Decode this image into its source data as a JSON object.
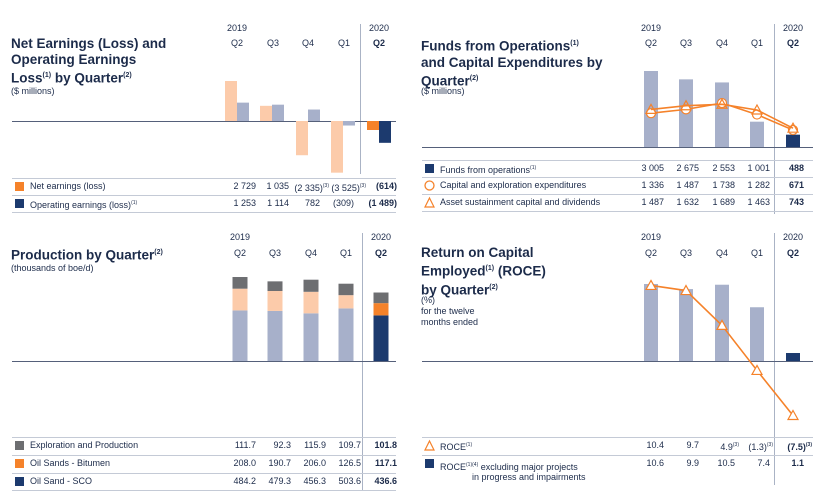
{
  "colors": {
    "navy": "#1c3a6e",
    "orange": "#f5822a",
    "light_orange": "#fccbaa",
    "light_blue": "#a7b0ca",
    "grey": "#6d6e71"
  },
  "chart_data": [
    {
      "type": "bar",
      "id": "net_earnings",
      "title": "Net Earnings (Loss) and Operating Earnings Loss by Quarter",
      "title_line1": "Net Earnings (Loss) and",
      "title_line2": "Operating Earnings",
      "title_line3_pre": "Loss",
      "title_line3_sup1": "(1)",
      "title_line3_mid": " by Quarter",
      "title_line3_sup2": "(2)",
      "subtitle": "($ millions)",
      "year_labels": [
        "2019",
        "2020"
      ],
      "categories": [
        "Q2",
        "Q3",
        "Q4",
        "Q1",
        "Q2"
      ],
      "series": [
        {
          "name": "Net earnings (loss)",
          "values": [
            2729,
            1035,
            -2335,
            -3525,
            -614
          ],
          "display": [
            "2 729",
            "1 035",
            "(2 335)",
            "(3 525)",
            "(614)"
          ],
          "display_sup": [
            "",
            "",
            "(3)",
            "(3)",
            ""
          ],
          "highlight_color": "#f5822a",
          "faded_color": "#fccbaa",
          "legend_sup": ""
        },
        {
          "name": "Operating earnings (loss)",
          "values": [
            1253,
            1114,
            782,
            -309,
            -1489
          ],
          "display": [
            "1 253",
            "1 114",
            "782",
            "(309)",
            "(1 489)"
          ],
          "display_sup": [
            "",
            "",
            "",
            "",
            ""
          ],
          "highlight_color": "#1c3a6e",
          "faded_color": "#a7b0ca",
          "legend_sup": "(1)"
        }
      ]
    },
    {
      "type": "bar+line",
      "id": "funds_from_operations",
      "title": "Funds from Operations and Capital Expenditures by Quarter",
      "title_line1_pre": "Funds from Operations",
      "title_line1_sup": "(1)",
      "title_line2": "and Capital Expenditures by",
      "title_line3_pre": "Quarter",
      "title_line3_sup": "(2)",
      "subtitle": "($ millions)",
      "year_labels": [
        "2019",
        "2020"
      ],
      "categories": [
        "Q2",
        "Q3",
        "Q4",
        "Q1",
        "Q2"
      ],
      "series": [
        {
          "name": "Funds from operations",
          "legend_sup": "(1)",
          "values": [
            3005,
            2675,
            2553,
            1001,
            488
          ],
          "display": [
            "3 005",
            "2 675",
            "2 553",
            "1 001",
            "488"
          ]
        },
        {
          "name": "Capital and exploration expenditures",
          "legend_sup": "",
          "values": [
            1336,
            1487,
            1738,
            1282,
            671
          ],
          "display": [
            "1 336",
            "1 487",
            "1 738",
            "1 282",
            "671"
          ]
        },
        {
          "name": "Asset sustainment capital and dividends",
          "legend_sup": "",
          "values": [
            1487,
            1632,
            1689,
            1463,
            743
          ],
          "display": [
            "1 487",
            "1 632",
            "1 689",
            "1 463",
            "743"
          ]
        }
      ]
    },
    {
      "type": "stacked-bar",
      "id": "production",
      "title": "Production by Quarter",
      "title_line1_pre": "Production by Quarter",
      "title_line1_sup": "(2)",
      "subtitle": "(thousands of boe/d)",
      "year_labels": [
        "2019",
        "2020"
      ],
      "categories": [
        "Q2",
        "Q3",
        "Q4",
        "Q1",
        "Q2"
      ],
      "series": [
        {
          "name": "Exploration and Production",
          "values": [
            111.7,
            92.3,
            115.9,
            109.7,
            101.8
          ],
          "display": [
            "111.7",
            "92.3",
            "115.9",
            "109.7",
            "101.8"
          ],
          "highlight_color": "#6d6e71",
          "faded_color": "#6d6e71"
        },
        {
          "name": "Oil Sands - Bitumen",
          "values": [
            208.0,
            190.7,
            206.0,
            126.5,
            117.1
          ],
          "display": [
            "208.0",
            "190.7",
            "206.0",
            "126.5",
            "117.1"
          ],
          "highlight_color": "#f5822a",
          "faded_color": "#fccbaa"
        },
        {
          "name": "Oil Sand - SCO",
          "values": [
            484.2,
            479.3,
            456.3,
            503.6,
            436.6
          ],
          "display": [
            "484.2",
            "479.3",
            "456.3",
            "503.6",
            "436.6"
          ],
          "highlight_color": "#1c3a6e",
          "faded_color": "#a7b0ca"
        }
      ]
    },
    {
      "type": "bar+line",
      "id": "roce",
      "title": "Return on Capital Employed (ROCE) by Quarter",
      "title_line1": "Return on Capital",
      "title_line2_pre": "Employed",
      "title_line2_sup": "(1)",
      "title_line2_post": " (ROCE)",
      "title_line3_pre": "by Quarter",
      "title_line3_sup": "(2)",
      "subtitle_lines": [
        "(%)",
        "for the twelve",
        "months ended"
      ],
      "year_labels": [
        "2019",
        "2020"
      ],
      "categories": [
        "Q2",
        "Q3",
        "Q4",
        "Q1",
        "Q2"
      ],
      "series": [
        {
          "name": "ROCE",
          "legend_sup": "(1)",
          "values": [
            10.4,
            9.7,
            4.9,
            -1.3,
            -7.5
          ],
          "display": [
            "10.4",
            "9.7",
            "4.9",
            "(1.3)",
            "(7.5)"
          ],
          "display_sup": [
            "",
            "",
            "(3)",
            "(3)",
            "(3)"
          ]
        },
        {
          "name": "ROCE excluding major projects in progress and impairments",
          "legend_pre": "ROCE",
          "legend_sup": "(1)(4)",
          "legend_line1": " excluding major projects",
          "legend_line2": "in progress and impairments",
          "values": [
            10.6,
            9.9,
            10.5,
            7.4,
            1.1
          ],
          "display": [
            "10.6",
            "9.9",
            "10.5",
            "7.4",
            "1.1"
          ],
          "display_sup": [
            "",
            "",
            "",
            "",
            ""
          ]
        }
      ]
    }
  ]
}
